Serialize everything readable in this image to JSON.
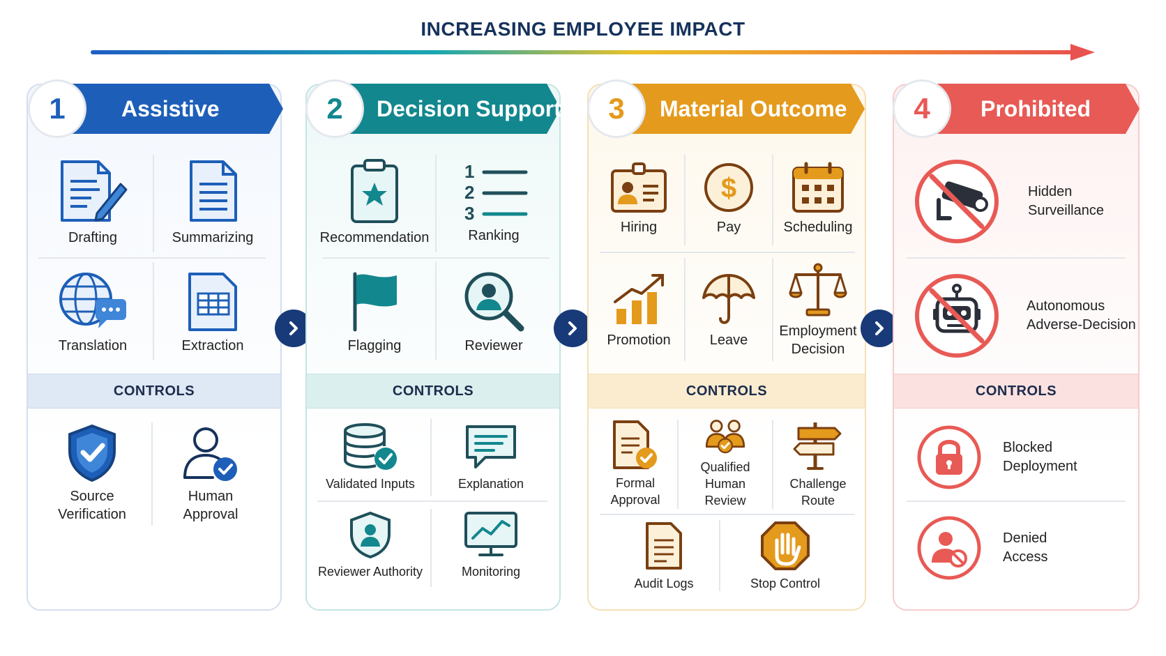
{
  "title": "INCREASING EMPLOYEE IMPACT",
  "colors": {
    "blue": "#1d5fb8",
    "teal": "#12878e",
    "orange": "#e49a1c",
    "red": "#e85a55",
    "navy": "#183a78"
  },
  "tiers": [
    {
      "number": "1",
      "name": "Assistive",
      "uses": [
        "Drafting",
        "Summarizing",
        "Translation",
        "Extraction"
      ],
      "controls_label": "CONTROLS",
      "controls": [
        "Source\nVerification",
        "Human\nApproval"
      ]
    },
    {
      "number": "2",
      "name": "Decision Support",
      "uses": [
        "Recommendation",
        "Ranking",
        "Flagging",
        "Reviewer"
      ],
      "controls_label": "CONTROLS",
      "controls": [
        "Validated Inputs",
        "Explanation",
        "Reviewer Authority",
        "Monitoring"
      ]
    },
    {
      "number": "3",
      "name": "Material Outcome",
      "uses": [
        "Hiring",
        "Pay",
        "Scheduling",
        "Promotion",
        "Leave",
        "Employment\nDecision"
      ],
      "controls_label": "CONTROLS",
      "controls": [
        "Formal\nApproval",
        "Qualified Human\nReview",
        "Challenge\nRoute",
        "Audit Logs",
        "Stop Control"
      ]
    },
    {
      "number": "4",
      "name": "Prohibited",
      "uses": [
        "Hidden\nSurveillance",
        "Autonomous\nAdverse-Decision"
      ],
      "controls_label": "CONTROLS",
      "controls": [
        "Blocked\nDeployment",
        "Denied\nAccess"
      ]
    }
  ],
  "icons": [
    "drafting-icon",
    "summarizing-icon",
    "translation-icon",
    "extraction-icon",
    "shield-check-icon",
    "user-check-icon",
    "clipboard-star-icon",
    "numbered-list-icon",
    "flag-icon",
    "magnifier-person-icon",
    "database-check-icon",
    "speech-bubble-icon",
    "shield-person-icon",
    "monitor-chart-icon",
    "id-card-icon",
    "dollar-icon",
    "calendar-icon",
    "growth-chart-icon",
    "umbrella-icon",
    "scales-icon",
    "document-check-icon",
    "group-check-icon",
    "signpost-icon",
    "document-icon",
    "stop-hand-icon",
    "no-camera-icon",
    "no-robot-icon",
    "lock-icon",
    "user-blocked-icon",
    "chevron-right-icon"
  ]
}
